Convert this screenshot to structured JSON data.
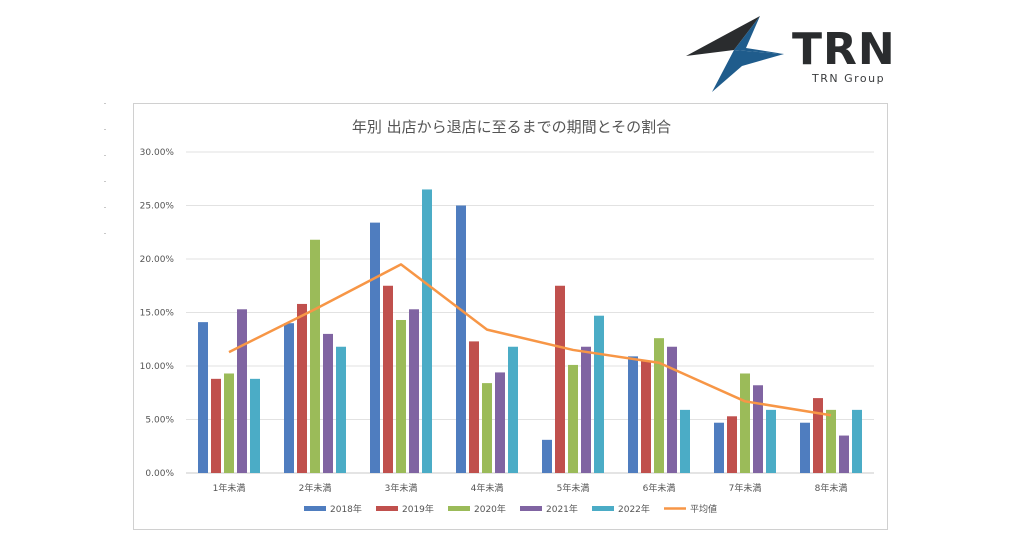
{
  "brand": {
    "name": "TRN",
    "subtitle": "TRN Group",
    "colors": {
      "dark": "#2a2c2e",
      "blue": "#1f5c8c"
    }
  },
  "chart_data": {
    "type": "bar",
    "title": "年別 出店から退店に至るまでの期間とその割合",
    "categories": [
      "1年未満",
      "2年未満",
      "3年未満",
      "4年未満",
      "5年未満",
      "6年未満",
      "7年未満",
      "8年未満"
    ],
    "yticks": [
      "0.00%",
      "5.00%",
      "10.00%",
      "15.00%",
      "20.00%",
      "25.00%",
      "30.00%"
    ],
    "ylim": [
      0,
      30
    ],
    "grid": true,
    "legend_position": "bottom",
    "series": [
      {
        "name": "2018年",
        "color": "#4f7dbf",
        "values": [
          14.1,
          14.0,
          23.4,
          25.0,
          3.1,
          10.9,
          4.7,
          4.7
        ]
      },
      {
        "name": "2019年",
        "color": "#c0504d",
        "values": [
          8.8,
          15.8,
          17.5,
          12.3,
          17.5,
          10.5,
          5.3,
          7.0
        ]
      },
      {
        "name": "2020年",
        "color": "#9bbb59",
        "values": [
          9.3,
          21.8,
          14.3,
          8.4,
          10.1,
          12.6,
          9.3,
          5.9
        ]
      },
      {
        "name": "2021年",
        "color": "#8064a2",
        "values": [
          15.3,
          13.0,
          15.3,
          9.4,
          11.8,
          11.8,
          8.2,
          3.5
        ]
      },
      {
        "name": "2022年",
        "color": "#4bacc6",
        "values": [
          8.8,
          11.8,
          26.5,
          11.8,
          14.7,
          5.9,
          5.9,
          5.9
        ]
      }
    ],
    "line": {
      "name": "平均値",
      "color": "#f79646",
      "values": [
        11.3,
        15.3,
        19.5,
        13.4,
        11.5,
        10.3,
        6.7,
        5.4
      ]
    }
  }
}
